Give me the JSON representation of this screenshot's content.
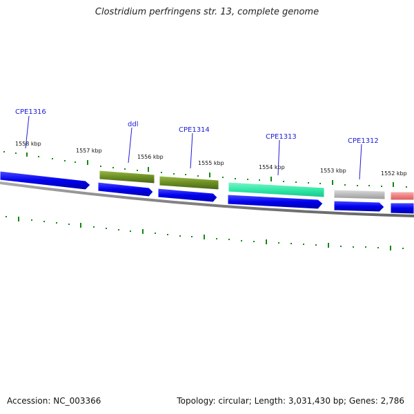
{
  "title": "Clostridium perfringens str. 13, complete genome",
  "accession": "Accession: NC_003366",
  "summary": "Topology: circular; Length: 3,031,430 bp; Genes: 2,786",
  "kbp_labels": [
    "1558 kbp",
    "1557 kbp",
    "1556 kbp",
    "1555 kbp",
    "1554 kbp",
    "1553 kbp",
    "1552 kbp"
  ],
  "gene_labels": [
    "CPE1316",
    "ddl",
    "CPE1314",
    "CPE1313",
    "CPE1312"
  ],
  "colors": {
    "cds": "#0000ee",
    "gene_olive": "#6b8e23",
    "gene_teal": "#33e8a8",
    "gene_grey": "#bbbbbb",
    "gene_red": "#f08080",
    "backbone": "#808080",
    "tick": "#118811",
    "label": "#1a1ad6"
  }
}
